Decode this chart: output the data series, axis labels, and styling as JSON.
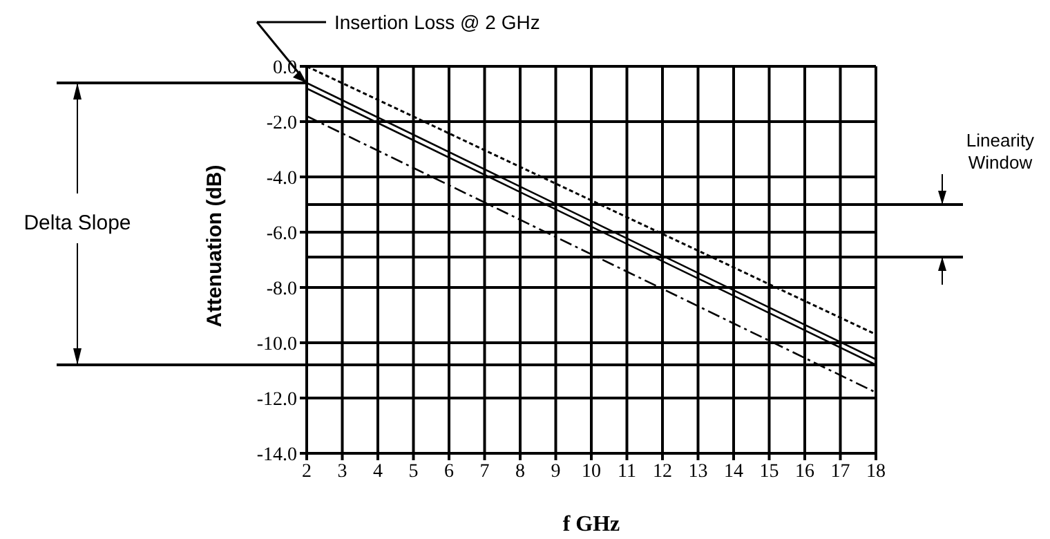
{
  "chart_data": {
    "type": "line",
    "xlabel": "f GHz",
    "ylabel": "Attenuation (dB)",
    "x": [
      2,
      18
    ],
    "series": [
      {
        "color": "#000000",
        "values": [
          0,
          -9.7
        ],
        "line_style": "dotted"
      },
      {
        "color": "#000000",
        "values": [
          -0.6,
          -10.6
        ],
        "line_style": "solid"
      },
      {
        "color": "#000000",
        "values": [
          -0.8,
          -10.8
        ],
        "line_style": "solid"
      },
      {
        "color": "#000000",
        "values": [
          -1.8,
          -11.8
        ],
        "line_style": "dashed"
      }
    ],
    "xlim": [
      2,
      18
    ],
    "xticks": [
      2,
      3,
      4,
      5,
      6,
      7,
      8,
      9,
      10,
      11,
      12,
      13,
      14,
      15,
      16,
      17,
      18
    ],
    "ylim": [
      -14,
      0
    ],
    "yticks": [
      {
        "value": 0,
        "label": "0.0"
      },
      {
        "value": -2,
        "label": "-2.0"
      },
      {
        "value": -4,
        "label": "-4.0"
      },
      {
        "value": -6,
        "label": "-6.0"
      },
      {
        "value": -8,
        "label": "-8.0"
      },
      {
        "value": -10,
        "label": "-10.0"
      },
      {
        "value": -12,
        "label": "-12.0"
      },
      {
        "value": -14,
        "label": "-14.0"
      }
    ],
    "grid": true,
    "marker": "none",
    "ref_lines": [
      {
        "axis": "y",
        "value": -10.8
      },
      {
        "axis": "y",
        "value": -5
      },
      {
        "axis": "y",
        "value": -6.9
      }
    ],
    "annotations": [
      "Insertion Loss @ 2 GHz",
      "Delta Slope",
      "Linearity Window"
    ]
  }
}
